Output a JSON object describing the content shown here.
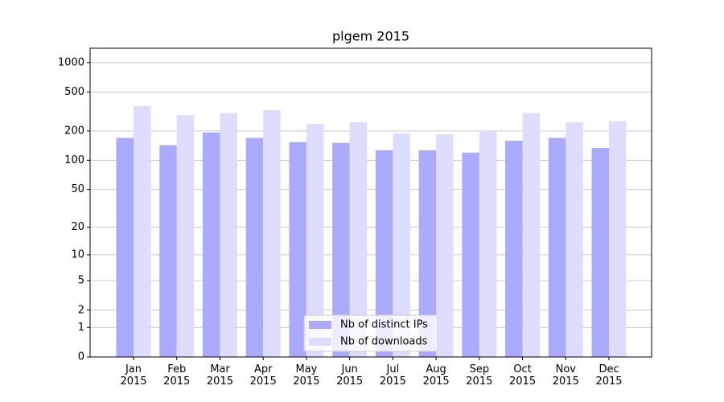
{
  "chart_data": {
    "type": "bar",
    "title": "plgem 2015",
    "categories": [
      "Jan\n2015",
      "Feb\n2015",
      "Mar\n2015",
      "Apr\n2015",
      "May\n2015",
      "Jun\n2015",
      "Jul\n2015",
      "Aug\n2015",
      "Sep\n2015",
      "Oct\n2015",
      "Nov\n2015",
      "Dec\n2015"
    ],
    "series": [
      {
        "name": "Nb of distinct IPs",
        "color": "#aaaaff",
        "values": [
          170,
          143,
          193,
          170,
          154,
          151,
          127,
          127,
          120,
          159,
          170,
          134
        ]
      },
      {
        "name": "Nb of downloads",
        "color": "#ddddff",
        "values": [
          360,
          292,
          304,
          327,
          237,
          246,
          189,
          185,
          200,
          304,
          246,
          252
        ]
      }
    ],
    "yscale": "log1p",
    "ylim": [
      0,
      1400
    ],
    "yticks": [
      0,
      1,
      2,
      5,
      10,
      20,
      50,
      100,
      200,
      500,
      1000
    ],
    "grid": true,
    "legend": "lower center"
  }
}
